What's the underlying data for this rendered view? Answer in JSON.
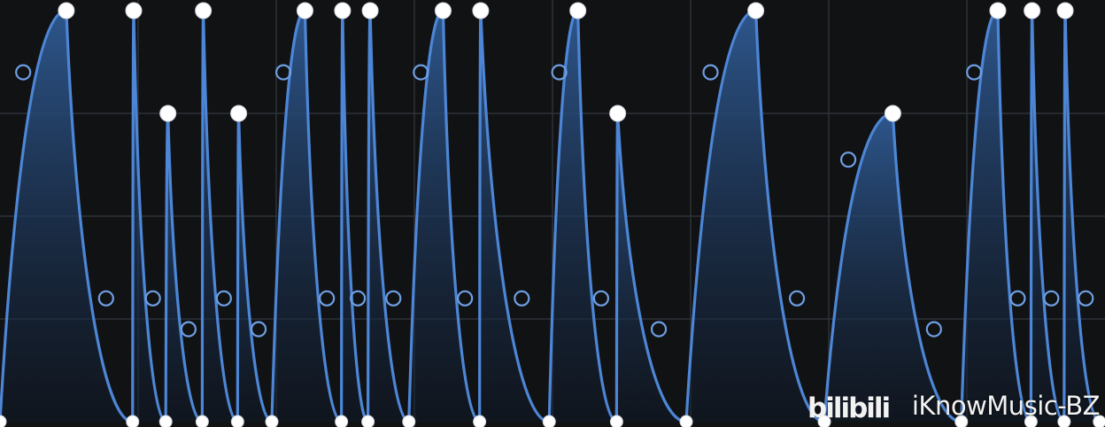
{
  "watermark": {
    "logo_text": "bilibili",
    "text": "iKnowMusic-BZ"
  },
  "colors": {
    "background": "#111214",
    "grid": "#2e3238",
    "envelope_line": "#4d86d6",
    "envelope_fill_top": "#2f5a93",
    "node_fill": "#ffffff"
  },
  "chart_data": {
    "type": "area",
    "description_level": "LFO shape envelope, values 0-1",
    "ylim": [
      0,
      1
    ],
    "grid": true,
    "cycles": [
      {
        "start": 0.0,
        "peak": 0.06,
        "end": 0.12,
        "level": 1.0
      },
      {
        "start": 0.12,
        "peak": 0.121,
        "end": 0.15,
        "level": 1.0
      },
      {
        "start": 0.15,
        "peak": 0.152,
        "end": 0.183,
        "level": 0.75
      },
      {
        "start": 0.183,
        "peak": 0.184,
        "end": 0.215,
        "level": 1.0
      },
      {
        "start": 0.215,
        "peak": 0.216,
        "end": 0.246,
        "level": 0.75
      },
      {
        "start": 0.246,
        "peak": 0.276,
        "end": 0.309,
        "level": 1.0
      },
      {
        "start": 0.309,
        "peak": 0.31,
        "end": 0.333,
        "level": 1.0
      },
      {
        "start": 0.333,
        "peak": 0.335,
        "end": 0.37,
        "level": 1.0
      },
      {
        "start": 0.37,
        "peak": 0.401,
        "end": 0.434,
        "level": 1.0
      },
      {
        "start": 0.434,
        "peak": 0.435,
        "end": 0.497,
        "level": 1.0
      },
      {
        "start": 0.497,
        "peak": 0.523,
        "end": 0.558,
        "level": 1.0
      },
      {
        "start": 0.558,
        "peak": 0.559,
        "end": 0.621,
        "level": 0.75
      },
      {
        "start": 0.621,
        "peak": 0.684,
        "end": 0.746,
        "level": 1.0
      },
      {
        "start": 0.746,
        "peak": 0.808,
        "end": 0.87,
        "level": 0.75
      },
      {
        "start": 0.87,
        "peak": 0.903,
        "end": 0.933,
        "level": 1.0
      },
      {
        "start": 0.933,
        "peak": 0.934,
        "end": 0.963,
        "level": 1.0
      },
      {
        "start": 0.963,
        "peak": 0.964,
        "end": 0.995,
        "level": 1.0
      }
    ]
  }
}
